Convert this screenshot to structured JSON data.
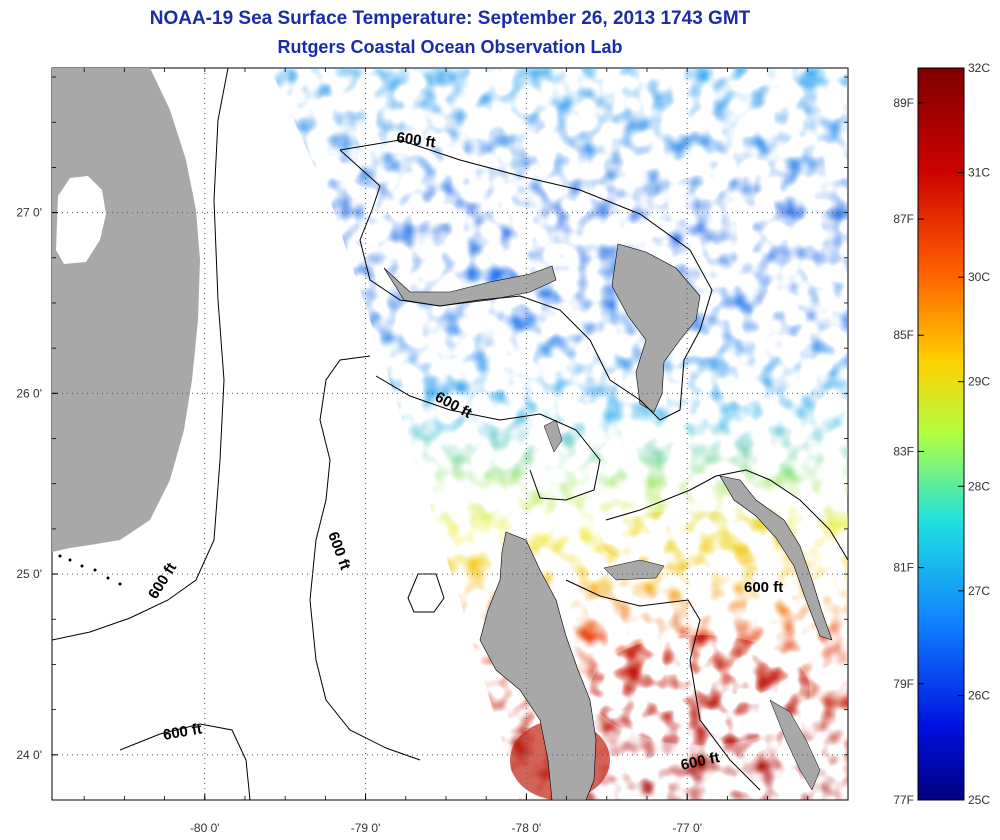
{
  "title": {
    "line1": "NOAA-19 Sea Surface Temperature:  September 26, 2013 1743 GMT",
    "line2": "Rutgers Coastal Ocean Observation Lab"
  },
  "map": {
    "lat_labels": [
      {
        "value": 27,
        "text": "27 0'"
      },
      {
        "value": 26,
        "text": "26 0'"
      },
      {
        "value": 25,
        "text": "25 0'"
      },
      {
        "value": 24,
        "text": "24 0'"
      }
    ],
    "lon_labels": [
      {
        "value": -80,
        "text": "-80 0'"
      },
      {
        "value": -79,
        "text": "-79 0'"
      },
      {
        "value": -78,
        "text": "-78 0'"
      },
      {
        "value": -77,
        "text": "-77 0'"
      }
    ],
    "lat_range": [
      23.75,
      27.8
    ],
    "lon_range": [
      -80.95,
      -76.0
    ],
    "contour_labels": [
      "600 ft",
      "600 ft",
      "600 ft",
      "600 ft",
      "600 ft",
      "600 ft"
    ],
    "colors": {
      "land": "#a8a8a8",
      "cloud": "#ffffff",
      "contour": "#000000",
      "grid": "#555555"
    }
  },
  "colorbar": {
    "celsius_labels": [
      "32C",
      "31C",
      "30C",
      "29C",
      "28C",
      "27C",
      "26C",
      "25C"
    ],
    "fahrenheit_labels": [
      "89F",
      "87F",
      "85F",
      "83F",
      "81F",
      "79F",
      "77F"
    ],
    "range_c": [
      25,
      32
    ],
    "colormap": "jet"
  }
}
